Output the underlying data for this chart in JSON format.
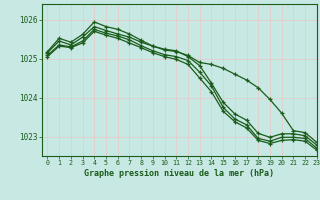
{
  "title": "Graphe pression niveau de la mer (hPa)",
  "background_color": "#c8e8e4",
  "grid_color": "#e8f4f2",
  "line_color": "#1a5c1a",
  "xlim": [
    -0.5,
    23
  ],
  "ylim": [
    1022.5,
    1026.4
  ],
  "yticks": [
    1023,
    1024,
    1025,
    1026
  ],
  "xticks": [
    0,
    1,
    2,
    3,
    4,
    5,
    6,
    7,
    8,
    9,
    10,
    11,
    12,
    13,
    14,
    15,
    16,
    17,
    18,
    19,
    20,
    21,
    22,
    23
  ],
  "series": [
    [
      1025.15,
      1025.45,
      1025.35,
      1025.55,
      1025.82,
      1025.72,
      1025.63,
      1025.55,
      1025.42,
      1025.32,
      1025.22,
      1025.18,
      1025.08,
      1024.9,
      1024.85,
      1024.75,
      1024.6,
      1024.45,
      1024.25,
      1023.95,
      1023.6,
      1023.15,
      1023.1,
      1022.85
    ],
    [
      1025.08,
      1025.35,
      1025.3,
      1025.45,
      1025.75,
      1025.65,
      1025.58,
      1025.48,
      1025.33,
      1025.2,
      1025.1,
      1025.05,
      1024.95,
      1024.65,
      1024.3,
      1023.75,
      1023.45,
      1023.3,
      1022.95,
      1022.88,
      1022.98,
      1022.98,
      1022.95,
      1022.7
    ],
    [
      1025.18,
      1025.52,
      1025.42,
      1025.62,
      1025.94,
      1025.82,
      1025.75,
      1025.63,
      1025.47,
      1025.32,
      1025.24,
      1025.2,
      1025.05,
      1024.82,
      1024.37,
      1023.88,
      1023.58,
      1023.42,
      1023.08,
      1022.98,
      1023.07,
      1023.07,
      1023.02,
      1022.78
    ],
    [
      1025.05,
      1025.32,
      1025.28,
      1025.4,
      1025.7,
      1025.6,
      1025.52,
      1025.4,
      1025.28,
      1025.15,
      1025.05,
      1024.98,
      1024.85,
      1024.5,
      1024.15,
      1023.65,
      1023.38,
      1023.22,
      1022.9,
      1022.82,
      1022.9,
      1022.92,
      1022.88,
      1022.65
    ]
  ]
}
